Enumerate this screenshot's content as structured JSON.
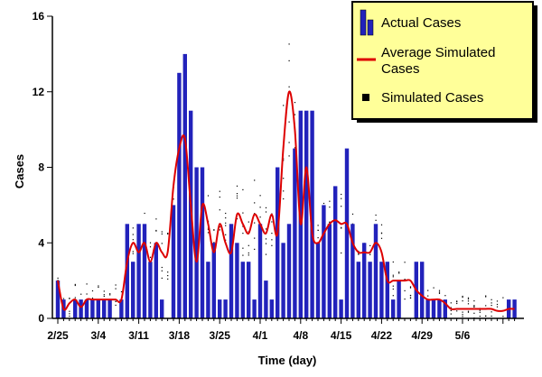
{
  "chart_data": {
    "type": "bar",
    "xlabel": "Time (day)",
    "ylabel": "Cases",
    "ylim": [
      0,
      16
    ],
    "yticks": [
      0,
      4,
      8,
      12,
      16
    ],
    "x_tick_labels": [
      "2/25",
      "3/4",
      "3/11",
      "3/18",
      "3/25",
      "4/1",
      "4/8",
      "4/15",
      "4/22",
      "4/29",
      "5/6"
    ],
    "legend_position": "top-right",
    "colors": {
      "bars": "#2222bb",
      "line": "#dd0000",
      "legend_bg": "#ffff99"
    },
    "series": [
      {
        "name": "Actual Cases",
        "type": "bar",
        "values": [
          2,
          1,
          0,
          1,
          1,
          1,
          1,
          1,
          1,
          1,
          0,
          1,
          5,
          3,
          5,
          5,
          3,
          4,
          1,
          0,
          6,
          13,
          14,
          11,
          8,
          8,
          3,
          4,
          1,
          1,
          5,
          4,
          3,
          3,
          1,
          5,
          2,
          1,
          8,
          4,
          5,
          9,
          11,
          11,
          11,
          4,
          6,
          5,
          7,
          1,
          9,
          5,
          3,
          4,
          3,
          5,
          3,
          3,
          1,
          2,
          0,
          0,
          3,
          3,
          1,
          1,
          1,
          1,
          0,
          0,
          0,
          0,
          0,
          0,
          0,
          0,
          0,
          0,
          1,
          1
        ],
        "legend_label": "Actual Cases"
      },
      {
        "name": "Average Simulated Cases",
        "type": "line",
        "values": [
          2,
          0.5,
          0.8,
          1,
          0.6,
          1,
          1,
          1,
          1,
          1,
          1,
          1,
          3,
          4,
          3.5,
          4,
          3,
          4,
          3.5,
          3.5,
          7,
          9,
          9.5,
          6,
          3,
          6,
          5,
          3.5,
          5,
          4,
          3.5,
          5.5,
          5,
          4.5,
          5.5,
          5,
          4.5,
          5.5,
          4.5,
          9,
          12,
          10,
          5,
          8,
          4.5,
          4,
          4.5,
          5,
          5.2,
          5,
          5,
          4,
          3.5,
          3.5,
          3.5,
          4,
          3.5,
          2,
          2,
          2,
          2,
          2,
          1.5,
          1.2,
          1,
          1,
          1,
          0.8,
          0.5,
          0.5,
          0.5,
          0.5,
          0.5,
          0.5,
          0.5,
          0.5,
          0.4,
          0.4,
          0.5,
          0.5
        ],
        "legend_label": "Average Simulated Cases"
      },
      {
        "name": "Simulated Cases",
        "type": "scatter",
        "legend_label": "Simulated Cases"
      }
    ]
  },
  "legend": {
    "actual": "Actual Cases",
    "average": "Average Simulated Cases",
    "simulated": "Simulated Cases"
  }
}
